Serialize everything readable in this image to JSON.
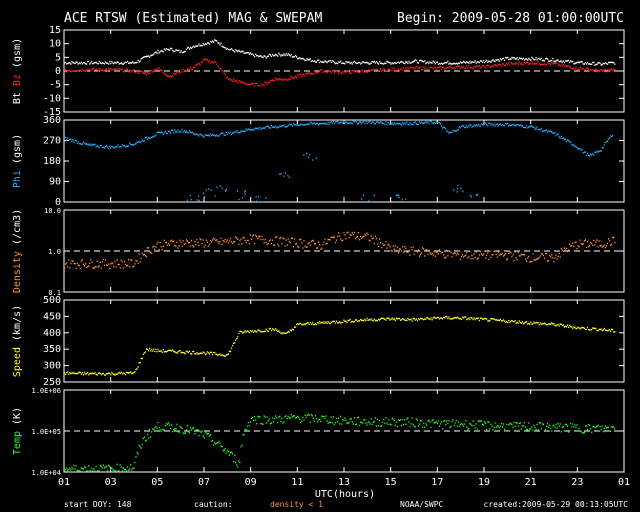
{
  "header": {
    "title": "ACE RTSW (Estimated) MAG & SWEPAM",
    "begin": "Begin: 2009-05-28 01:00:00UTC"
  },
  "footer": {
    "start_doy": "start DOY: 148",
    "caution": "caution:",
    "density_note": "density < 1",
    "source": "NOAA/SWPC",
    "created": "created:2009-05-29 00:13:05UTC"
  },
  "chart_data": {
    "type": "scatter",
    "x_axis": {
      "label": "UTC(hours)",
      "ticks": [
        "01",
        "03",
        "05",
        "07",
        "09",
        "11",
        "13",
        "15",
        "17",
        "19",
        "21",
        "23",
        "01"
      ],
      "range_hours": [
        1,
        25
      ]
    },
    "panels": [
      {
        "key": "bz",
        "ylabel_parts": [
          {
            "text": "Bt",
            "color": "#ffffff"
          },
          {
            "text": "Bz",
            "color": "#ff2020"
          },
          {
            "text": "(gsm)",
            "color": "#ffffff"
          }
        ],
        "scale": "linear",
        "ylim": [
          -15,
          15
        ],
        "yticks": [
          "-15",
          "-10",
          "-5",
          "0",
          "5",
          "10",
          "15"
        ],
        "reference_line": 0,
        "series": [
          {
            "name": "Bt",
            "color": "#ffffff",
            "x": [
              1,
              2,
              3,
              4,
              4.5,
              5,
              5.5,
              6,
              6.5,
              7,
              7.5,
              8,
              8.5,
              9,
              9.5,
              10,
              10.5,
              11,
              11.5,
              12,
              13,
              14,
              15,
              16,
              17,
              18,
              19,
              20,
              21,
              22,
              23,
              24,
              24.6
            ],
            "y": [
              3,
              3,
              3,
              3,
              5,
              7,
              8,
              7,
              9,
              10,
              11,
              8,
              7,
              6,
              5,
              6,
              6,
              5,
              4,
              3.5,
              3,
              3,
              3,
              3.5,
              3,
              3,
              3.5,
              4.5,
              4.5,
              4,
              3,
              2.5,
              3
            ]
          },
          {
            "name": "Bz",
            "color": "#ff2020",
            "x": [
              1,
              2,
              3,
              4,
              4.5,
              5,
              5.5,
              6,
              6.5,
              7,
              7.5,
              8,
              8.5,
              9,
              9.5,
              10,
              10.5,
              11,
              11.5,
              12,
              13,
              14,
              15,
              16,
              17,
              18,
              19,
              20,
              21,
              22,
              23,
              24,
              24.6
            ],
            "y": [
              0,
              0.5,
              0.5,
              0,
              -1,
              1,
              -2,
              0,
              1,
              4,
              3,
              -3,
              -4,
              -5,
              -5,
              -3,
              -3,
              -2,
              -1,
              0,
              -0.5,
              0,
              0.5,
              1,
              1,
              1.5,
              1.5,
              2.5,
              3,
              2.5,
              1,
              0,
              0.5
            ]
          }
        ]
      },
      {
        "key": "phi",
        "ylabel_parts": [
          {
            "text": "Phi",
            "color": "#20b0ff"
          },
          {
            "text": "(gsm)",
            "color": "#ffffff"
          }
        ],
        "scale": "linear",
        "ylim": [
          0,
          360
        ],
        "yticks": [
          "0",
          "90",
          "180",
          "270",
          "360"
        ],
        "series": [
          {
            "name": "Phi",
            "color": "#20b0ff",
            "x": [
              1,
              2,
              3,
              4,
              5,
              6,
              7,
              8,
              9,
              10,
              11,
              12,
              13,
              14,
              15,
              16,
              17,
              17.5,
              18,
              19,
              20,
              21,
              22,
              22.5,
              23,
              23.5,
              24,
              24.5
            ],
            "y": [
              280,
              250,
              240,
              255,
              300,
              315,
              290,
              300,
              320,
              330,
              340,
              345,
              350,
              350,
              345,
              345,
              350,
              300,
              330,
              340,
              340,
              330,
              300,
              270,
              240,
              200,
              230,
              300
            ],
            "outliers_x": [
              6.5,
              7.2,
              7.8,
              8.5,
              9.5,
              10.5,
              11.5,
              14,
              15.5,
              17.8,
              18.5
            ],
            "outliers_y": [
              20,
              40,
              60,
              30,
              10,
              120,
              200,
              15,
              30,
              60,
              20
            ]
          }
        ]
      },
      {
        "key": "density",
        "ylabel_parts": [
          {
            "text": "Density",
            "color": "#ff9030"
          },
          {
            "text": "(/cm3)",
            "color": "#ffffff"
          }
        ],
        "scale": "log",
        "ylim": [
          0.1,
          10
        ],
        "yticks": [
          "0.1",
          "1.0",
          "10.0"
        ],
        "reference_line": 1.0,
        "series": [
          {
            "name": "Density",
            "color": "#ff9030",
            "x": [
              1,
              2,
              3,
              4,
              5,
              6,
              7,
              8,
              9,
              10,
              11,
              12,
              13,
              14,
              15,
              16,
              17,
              18,
              19,
              20,
              21,
              22,
              23,
              24,
              24.6
            ],
            "y": [
              0.5,
              0.5,
              0.5,
              0.5,
              1.4,
              1.6,
              1.6,
              1.7,
              2.0,
              1.8,
              1.6,
              1.4,
              2.5,
              2.2,
              1.1,
              1.0,
              0.9,
              0.8,
              0.8,
              0.8,
              0.7,
              0.7,
              1.5,
              1.5,
              1.8
            ]
          }
        ]
      },
      {
        "key": "speed",
        "ylabel_parts": [
          {
            "text": "Speed",
            "color": "#ffff20"
          },
          {
            "text": "(km/s)",
            "color": "#ffffff"
          }
        ],
        "scale": "linear",
        "ylim": [
          250,
          500
        ],
        "yticks": [
          "250",
          "300",
          "350",
          "400",
          "450",
          "500"
        ],
        "series": [
          {
            "name": "Speed",
            "color": "#ffff20",
            "x": [
              1,
              2,
              3,
              4,
              4.5,
              5,
              6,
              7,
              8,
              8.5,
              9,
              10,
              10.5,
              11,
              12,
              13,
              14,
              15,
              16,
              17,
              18,
              19,
              20,
              21,
              22,
              23,
              24,
              24.6
            ],
            "y": [
              277,
              275,
              275,
              277,
              350,
              345,
              342,
              338,
              332,
              400,
              405,
              410,
              395,
              425,
              430,
              435,
              440,
              442,
              440,
              445,
              445,
              440,
              435,
              430,
              425,
              415,
              410,
              405
            ]
          }
        ]
      },
      {
        "key": "temp",
        "ylabel_parts": [
          {
            "text": "Temp",
            "color": "#20ff20"
          },
          {
            "text": "(K)",
            "color": "#ffffff"
          }
        ],
        "scale": "log",
        "ylim": [
          10000,
          1000000
        ],
        "yticks": [
          "1.0E+04",
          "1.0E+05",
          "1.0E+06"
        ],
        "reference_line": 100000,
        "series": [
          {
            "name": "Temp",
            "color": "#20ff20",
            "x": [
              1,
              2,
              3,
              4,
              5,
              6,
              7,
              7.5,
              8,
              8.5,
              9,
              10,
              11,
              12,
              13,
              14,
              15,
              16,
              17,
              18,
              19,
              20,
              21,
              22,
              23,
              24,
              24.6
            ],
            "y": [
              12000,
              12000,
              12000,
              13000,
              130000,
              120000,
              80000,
              50000,
              30000,
              15000,
              200000,
              190000,
              210000,
              200000,
              180000,
              170000,
              170000,
              165000,
              150000,
              150000,
              140000,
              130000,
              130000,
              125000,
              120000,
              115000,
              120000
            ]
          }
        ]
      }
    ]
  }
}
